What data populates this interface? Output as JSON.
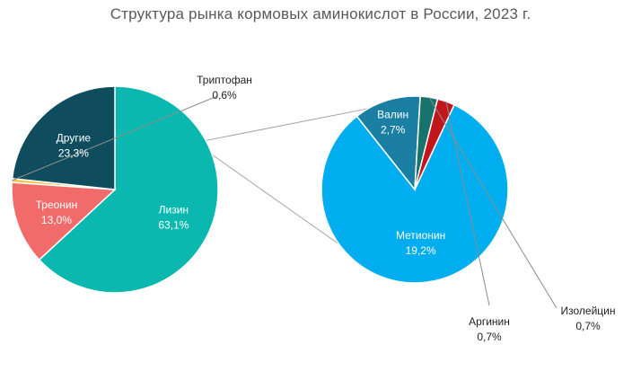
{
  "chart_data": {
    "type": "pie",
    "subtype": "pie-of-pie",
    "title": "Структура рынка кормовых аминокислот в России,  2023  г.",
    "main_pie": [
      {
        "name": "Лизин",
        "value": 63.1,
        "label": "63,1%",
        "color": "#0bb8b0"
      },
      {
        "name": "Треонин",
        "value": 13.0,
        "label": "13,0%",
        "color": "#f26b6b"
      },
      {
        "name": "Триптофан",
        "value": 0.6,
        "label": "0,6%",
        "color": "#f5c242"
      },
      {
        "name": "Другие",
        "value": 23.3,
        "label": "23,3%",
        "color": "#0e4c5e"
      }
    ],
    "secondary_pie": [
      {
        "name": "Метионин",
        "value": 19.2,
        "label": "19,2%",
        "color": "#00aeef"
      },
      {
        "name": "Валин",
        "value": 2.7,
        "label": "2,7%",
        "color": "#1a7fa3"
      },
      {
        "name": "Изолейцин",
        "value": 0.7,
        "label": "0,7%",
        "color": "#17736b"
      },
      {
        "name": "Аргинин",
        "value": 0.7,
        "label": "0,7%",
        "color": "#c0161c"
      }
    ]
  }
}
